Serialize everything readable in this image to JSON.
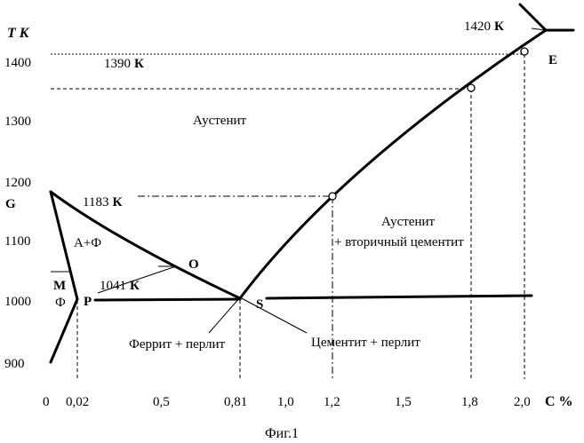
{
  "chart_data": {
    "type": "diagram",
    "x_label": "С %",
    "y_label": "Т К",
    "x_ticks": [
      "0",
      "0,02",
      "0,5",
      "0,81",
      "1,0",
      "1,2",
      "1,5",
      "1,8",
      "2,0"
    ],
    "y_ticks": [
      "900",
      "1000",
      "1100",
      "1200",
      "1300",
      "1400"
    ],
    "points": [
      {
        "id": "G",
        "label": "G"
      },
      {
        "id": "P",
        "label": "P"
      },
      {
        "id": "S",
        "label": "S"
      },
      {
        "id": "E",
        "label": "E"
      },
      {
        "id": "O",
        "label": "O"
      },
      {
        "id": "M",
        "label": "M"
      }
    ],
    "regions": {
      "austenite": "Аустенит",
      "austenite_ferrite": "А+Ф",
      "ferrite": "Ф",
      "austenite_cementite_1": "Аустенит",
      "austenite_cementite_2": "+ вторичный цементит",
      "ferrite_pearlite": "Феррит + перлит",
      "cementite_pearlite": "Цементит + перлит"
    },
    "annotations": {
      "t1420": {
        "num": "1420",
        "unit": "К"
      },
      "t1390": {
        "num": "1390",
        "unit": "К"
      },
      "t1183": {
        "num": "1183",
        "unit": "К"
      },
      "t1041": {
        "num": "1041",
        "unit": "К"
      }
    }
  },
  "caption": "Фиг.1"
}
